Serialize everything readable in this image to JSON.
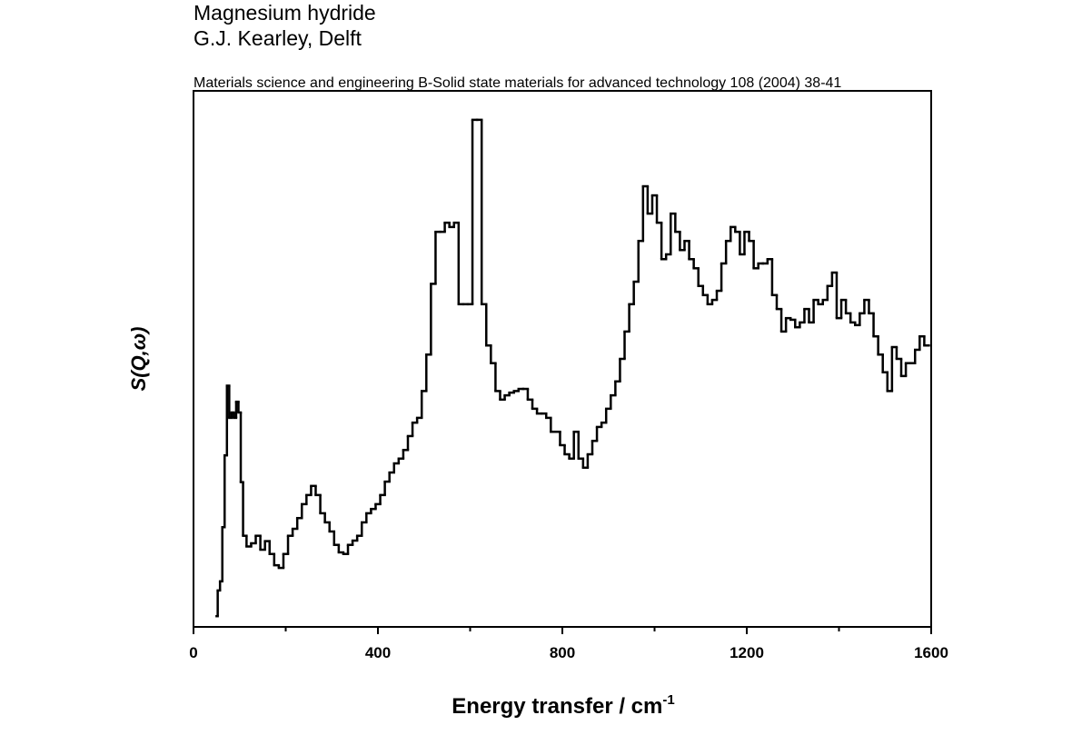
{
  "chart_data": {
    "type": "step",
    "title": "Magnesium hydride",
    "subtitle": "G.J. Kearley, Delft",
    "citation": "Materials science and engineering B-Solid state materials for advanced technology 108 (2004) 38-41",
    "x_label": "Energy transfer / cm",
    "x_label_superscript": "-1",
    "y_label": "S(Q,ω)",
    "color": "#000000",
    "xlim": [
      0,
      1600
    ],
    "xticks": [
      0,
      400,
      800,
      1200,
      1600
    ],
    "xminorticks": [
      200,
      600,
      1000,
      1400
    ],
    "ylim": [
      0,
      100
    ],
    "x": [
      50,
      55,
      60,
      65,
      70,
      75,
      80,
      85,
      90,
      95,
      100,
      105,
      110,
      120,
      130,
      140,
      150,
      160,
      170,
      180,
      190,
      200,
      210,
      220,
      230,
      240,
      250,
      260,
      270,
      280,
      290,
      300,
      310,
      320,
      330,
      340,
      350,
      360,
      370,
      380,
      390,
      400,
      410,
      420,
      430,
      440,
      450,
      460,
      470,
      480,
      490,
      500,
      510,
      520,
      530,
      540,
      550,
      560,
      570,
      580,
      590,
      600,
      610,
      620,
      630,
      640,
      650,
      660,
      670,
      680,
      690,
      700,
      710,
      720,
      730,
      740,
      750,
      760,
      770,
      780,
      790,
      800,
      810,
      820,
      830,
      840,
      850,
      860,
      870,
      880,
      890,
      900,
      910,
      920,
      930,
      940,
      950,
      960,
      970,
      980,
      990,
      1000,
      1010,
      1020,
      1030,
      1040,
      1050,
      1060,
      1070,
      1080,
      1090,
      1100,
      1110,
      1120,
      1130,
      1140,
      1150,
      1160,
      1170,
      1180,
      1190,
      1200,
      1210,
      1220,
      1230,
      1240,
      1250,
      1260,
      1270,
      1280,
      1290,
      1300,
      1310,
      1320,
      1330,
      1340,
      1350,
      1360,
      1370,
      1380,
      1390,
      1400,
      1410,
      1420,
      1430,
      1440,
      1450,
      1460,
      1470,
      1480,
      1490,
      1500,
      1510,
      1520,
      1530,
      1540,
      1550,
      1560,
      1570,
      1580,
      1590
    ],
    "values": [
      2,
      6.8,
      8.5,
      18.6,
      32,
      45,
      39,
      40,
      39,
      42,
      40,
      27,
      17,
      15,
      15.6,
      17,
      14.4,
      16,
      13.6,
      11.5,
      11,
      13.6,
      17,
      18.3,
      20.3,
      22.9,
      24.6,
      26.3,
      24.6,
      21.2,
      19.5,
      17.8,
      15.3,
      13.9,
      13.6,
      15.3,
      16.1,
      17,
      19.5,
      21.2,
      22,
      22.9,
      24.6,
      27.1,
      28.8,
      30.5,
      31.4,
      33,
      35.6,
      38.1,
      39,
      44,
      50.8,
      64,
      73.7,
      73.7,
      75.4,
      74.6,
      75.4,
      60.2,
      60.2,
      60.2,
      94.6,
      94.6,
      60.2,
      52.5,
      49.2,
      44,
      42.4,
      43.2,
      43.7,
      44,
      44.4,
      44.4,
      42.4,
      40.7,
      39.8,
      39.8,
      39,
      36.4,
      36.4,
      33.9,
      32.2,
      31.4,
      36.4,
      31.4,
      29.7,
      32.2,
      34.7,
      37.3,
      38.1,
      40.7,
      43.2,
      45.8,
      50,
      55.1,
      60.2,
      64.4,
      72,
      82.2,
      77.1,
      80.5,
      75.4,
      68.6,
      69.5,
      77.1,
      73.7,
      70.3,
      72,
      68.6,
      66.9,
      63.6,
      61.9,
      60.2,
      61,
      62.7,
      67.8,
      72,
      74.6,
      73.7,
      69.5,
      73.7,
      72,
      66.9,
      67.8,
      67.8,
      68.6,
      61.9,
      59.3,
      55.1,
      57.6,
      57.3,
      55.9,
      56.8,
      59.3,
      56.8,
      61,
      60.2,
      61,
      63.6,
      66.1,
      57.6,
      61,
      58.5,
      56.8,
      56.3,
      58.5,
      61,
      58.5,
      54.2,
      50.8,
      47.5,
      44,
      52.2,
      50,
      46.8,
      49.2,
      49.2,
      51.7,
      54.2,
      52.5
    ]
  }
}
